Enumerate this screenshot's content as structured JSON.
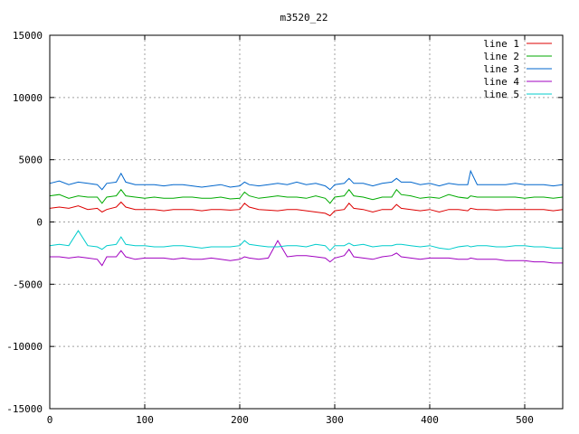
{
  "chart_data": {
    "type": "line",
    "title": "m3520_22",
    "xlabel": "",
    "ylabel": "",
    "xlim": [
      0,
      540
    ],
    "ylim": [
      -15000,
      15000
    ],
    "x_ticks": [
      "0",
      "100",
      "200",
      "300",
      "400",
      "500"
    ],
    "x_tick_values": [
      0,
      100,
      200,
      300,
      400,
      500
    ],
    "y_ticks": [
      "15000",
      "10000",
      "5000",
      "0",
      "-5000",
      "-10000",
      "-15000"
    ],
    "y_tick_values": [
      15000,
      10000,
      5000,
      0,
      -5000,
      -10000,
      -15000
    ],
    "grid": true,
    "legend_position": "top-right",
    "x": [
      0,
      10,
      20,
      30,
      40,
      50,
      55,
      60,
      70,
      75,
      80,
      90,
      100,
      110,
      120,
      130,
      140,
      150,
      160,
      170,
      180,
      190,
      200,
      205,
      210,
      220,
      230,
      240,
      250,
      260,
      270,
      280,
      290,
      295,
      300,
      310,
      315,
      320,
      330,
      340,
      350,
      360,
      365,
      370,
      380,
      390,
      400,
      410,
      420,
      430,
      440,
      443,
      450,
      460,
      470,
      480,
      490,
      500,
      510,
      520,
      530,
      540
    ],
    "series": [
      {
        "name": "line 1",
        "color": "#dd0000",
        "values": [
          1100,
          1200,
          1100,
          1300,
          1000,
          1100,
          800,
          1000,
          1200,
          1600,
          1200,
          1000,
          1000,
          1000,
          900,
          1000,
          1000,
          1000,
          900,
          1000,
          1000,
          950,
          1000,
          1500,
          1200,
          1000,
          950,
          900,
          1000,
          1000,
          900,
          800,
          700,
          500,
          900,
          1000,
          1500,
          1100,
          1000,
          800,
          1000,
          1000,
          1400,
          1100,
          1000,
          900,
          1000,
          800,
          1000,
          1000,
          900,
          1100,
          1000,
          1000,
          950,
          1000,
          1000,
          1000,
          1000,
          1000,
          900,
          1000
        ]
      },
      {
        "name": "line 2",
        "color": "#00aa00",
        "values": [
          2100,
          2200,
          1900,
          2100,
          2000,
          2000,
          1500,
          2000,
          2100,
          2600,
          2100,
          2000,
          1900,
          2000,
          1900,
          1900,
          2000,
          2000,
          1900,
          1900,
          2000,
          1850,
          1900,
          2400,
          2100,
          1900,
          2000,
          2100,
          2000,
          2000,
          1900,
          2100,
          1900,
          1500,
          2000,
          2100,
          2600,
          2100,
          2000,
          1800,
          2000,
          2000,
          2600,
          2200,
          2100,
          1900,
          2000,
          1900,
          2200,
          2000,
          1900,
          2100,
          2000,
          2000,
          2000,
          2000,
          2000,
          1900,
          2000,
          2000,
          1900,
          2000
        ]
      },
      {
        "name": "line 3",
        "color": "#0066cc",
        "values": [
          3100,
          3300,
          3000,
          3200,
          3100,
          3000,
          2600,
          3100,
          3200,
          3900,
          3200,
          3000,
          3000,
          3000,
          2900,
          3000,
          3000,
          2900,
          2800,
          2900,
          3000,
          2800,
          2900,
          3200,
          3000,
          2900,
          3000,
          3100,
          3000,
          3200,
          3000,
          3100,
          2900,
          2600,
          3000,
          3100,
          3500,
          3100,
          3100,
          2900,
          3100,
          3200,
          3500,
          3200,
          3200,
          3000,
          3100,
          2900,
          3100,
          3000,
          3000,
          4100,
          3000,
          3000,
          3000,
          3000,
          3100,
          3000,
          3000,
          3000,
          2900,
          3000
        ]
      },
      {
        "name": "line 4",
        "color": "#a000c0",
        "values": [
          -2800,
          -2800,
          -2900,
          -2800,
          -2900,
          -3000,
          -3500,
          -2800,
          -2800,
          -2300,
          -2800,
          -3000,
          -2900,
          -2900,
          -2900,
          -3000,
          -2900,
          -3000,
          -3000,
          -2900,
          -3000,
          -3100,
          -3000,
          -2800,
          -2900,
          -3000,
          -2900,
          -1500,
          -2800,
          -2700,
          -2700,
          -2800,
          -2900,
          -3200,
          -2900,
          -2700,
          -2200,
          -2800,
          -2900,
          -3000,
          -2800,
          -2700,
          -2500,
          -2800,
          -2900,
          -3000,
          -2900,
          -2900,
          -2900,
          -3000,
          -3000,
          -2900,
          -3000,
          -3000,
          -3000,
          -3100,
          -3100,
          -3100,
          -3200,
          -3200,
          -3300,
          -3300
        ]
      },
      {
        "name": "line 5",
        "color": "#00cccc",
        "values": [
          -1900,
          -1800,
          -1900,
          -700,
          -1900,
          -2000,
          -2200,
          -1900,
          -1800,
          -1200,
          -1800,
          -1900,
          -1900,
          -2000,
          -2000,
          -1900,
          -1900,
          -2000,
          -2100,
          -2000,
          -2000,
          -2000,
          -1900,
          -1500,
          -1800,
          -1900,
          -2000,
          -2000,
          -1900,
          -1900,
          -2000,
          -1800,
          -1900,
          -2300,
          -1900,
          -1900,
          -1700,
          -1900,
          -1800,
          -2000,
          -1900,
          -1900,
          -1800,
          -1800,
          -1900,
          -2000,
          -1900,
          -2100,
          -2200,
          -2000,
          -1900,
          -2000,
          -1900,
          -1900,
          -2000,
          -2000,
          -1900,
          -1900,
          -2000,
          -2000,
          -2100,
          -2100
        ]
      }
    ]
  }
}
